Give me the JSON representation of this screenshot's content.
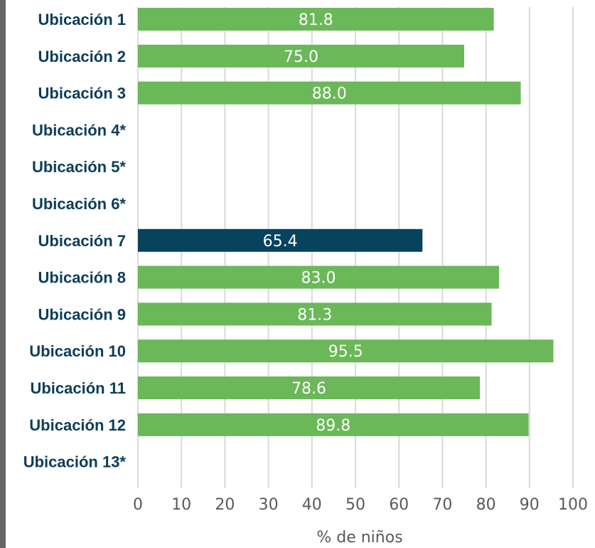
{
  "chart_data": {
    "type": "bar",
    "orientation": "horizontal",
    "categories": [
      "Ubicación 1",
      "Ubicación 2",
      "Ubicación 3",
      "Ubicación 4*",
      "Ubicación 5*",
      "Ubicación 6*",
      "Ubicación 7",
      "Ubicación 8",
      "Ubicación 9",
      "Ubicación 10",
      "Ubicación 11",
      "Ubicación 12",
      "Ubicación 13*"
    ],
    "values": [
      81.8,
      75.0,
      88.0,
      null,
      null,
      null,
      65.4,
      83.0,
      81.3,
      95.5,
      78.6,
      89.8,
      null
    ],
    "value_labels": [
      "81.8",
      "75.0",
      "88.0",
      "",
      "",
      "",
      "65.4",
      "83.0",
      "81.3",
      "95.5",
      "78.6",
      "89.8",
      ""
    ],
    "highlight_index": 6,
    "xlabel": "% de niños",
    "ylabel": "",
    "xlim": [
      0,
      100
    ],
    "xticks": [
      "0",
      "10",
      "20",
      "30",
      "40",
      "50",
      "60",
      "70",
      "80",
      "90",
      "100"
    ],
    "grid": "vertical",
    "colors": {
      "bar": "#6ab858",
      "highlight": "#08435e",
      "category_text": "#0d3d59",
      "grid": "#d9d9d9",
      "tick_text": "#595959",
      "value_text": "#ffffff"
    }
  }
}
